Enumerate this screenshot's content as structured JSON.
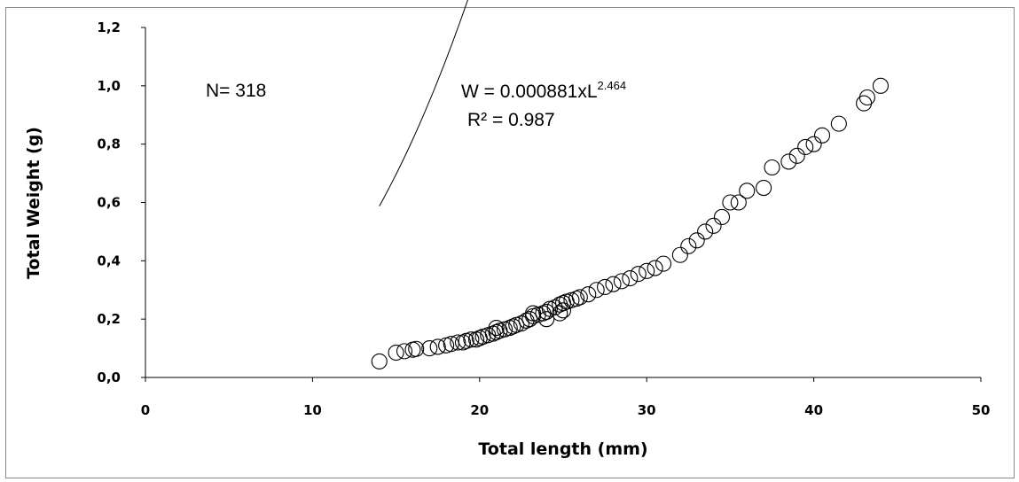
{
  "chart_data": {
    "type": "scatter",
    "title": "",
    "xlabel": "Total length (mm)",
    "ylabel": "Total Weight (g)",
    "xlim": [
      0,
      50
    ],
    "ylim": [
      0,
      1.2
    ],
    "x_ticks": [
      "0",
      "10",
      "20",
      "30",
      "40",
      "50"
    ],
    "y_ticks": [
      "0,0",
      "0,2",
      "0,4",
      "0,6",
      "0,8",
      "1,0",
      "1,2"
    ],
    "grid": false,
    "marker": "open-circle",
    "trendline": {
      "type": "power",
      "a": 0.000881,
      "b": 2.464,
      "x_range": [
        14,
        44
      ]
    },
    "annotations": {
      "n": "N= 318",
      "equation_main": "W = 0.000881xL",
      "equation_exp": "2.464",
      "r2_main": "R² = 0.987"
    },
    "x": [
      14.0,
      15.0,
      15.5,
      16.0,
      16.2,
      17.0,
      17.5,
      18.0,
      18.3,
      18.7,
      19.0,
      19.2,
      19.5,
      19.8,
      20.0,
      20.2,
      20.5,
      20.8,
      21.0,
      21.2,
      21.5,
      21.8,
      22.0,
      22.2,
      22.5,
      22.8,
      23.0,
      23.2,
      23.5,
      23.8,
      24.0,
      24.2,
      24.5,
      24.8,
      25.0,
      25.2,
      25.5,
      25.8,
      26.0,
      26.5,
      27.0,
      27.5,
      28.0,
      28.5,
      29.0,
      29.5,
      30.0,
      30.5,
      31.0,
      32.0,
      32.5,
      33.0,
      33.5,
      34.0,
      34.5,
      35.0,
      35.5,
      36.0,
      37.0,
      37.5,
      38.5,
      39.0,
      39.5,
      40.0,
      40.5,
      41.5,
      43.0,
      43.2,
      44.0,
      23.2,
      24.0,
      24.8,
      21.0,
      25.0
    ],
    "y": [
      0.055,
      0.085,
      0.09,
      0.095,
      0.098,
      0.1,
      0.105,
      0.11,
      0.115,
      0.12,
      0.12,
      0.125,
      0.13,
      0.13,
      0.135,
      0.14,
      0.145,
      0.15,
      0.155,
      0.16,
      0.165,
      0.17,
      0.175,
      0.18,
      0.185,
      0.195,
      0.2,
      0.21,
      0.215,
      0.22,
      0.225,
      0.235,
      0.24,
      0.25,
      0.255,
      0.26,
      0.265,
      0.27,
      0.275,
      0.285,
      0.3,
      0.31,
      0.32,
      0.33,
      0.34,
      0.355,
      0.365,
      0.375,
      0.39,
      0.42,
      0.45,
      0.47,
      0.5,
      0.52,
      0.55,
      0.6,
      0.6,
      0.64,
      0.65,
      0.72,
      0.74,
      0.76,
      0.79,
      0.8,
      0.83,
      0.87,
      0.94,
      0.96,
      1.0,
      0.22,
      0.2,
      0.22,
      0.17,
      0.23
    ]
  }
}
